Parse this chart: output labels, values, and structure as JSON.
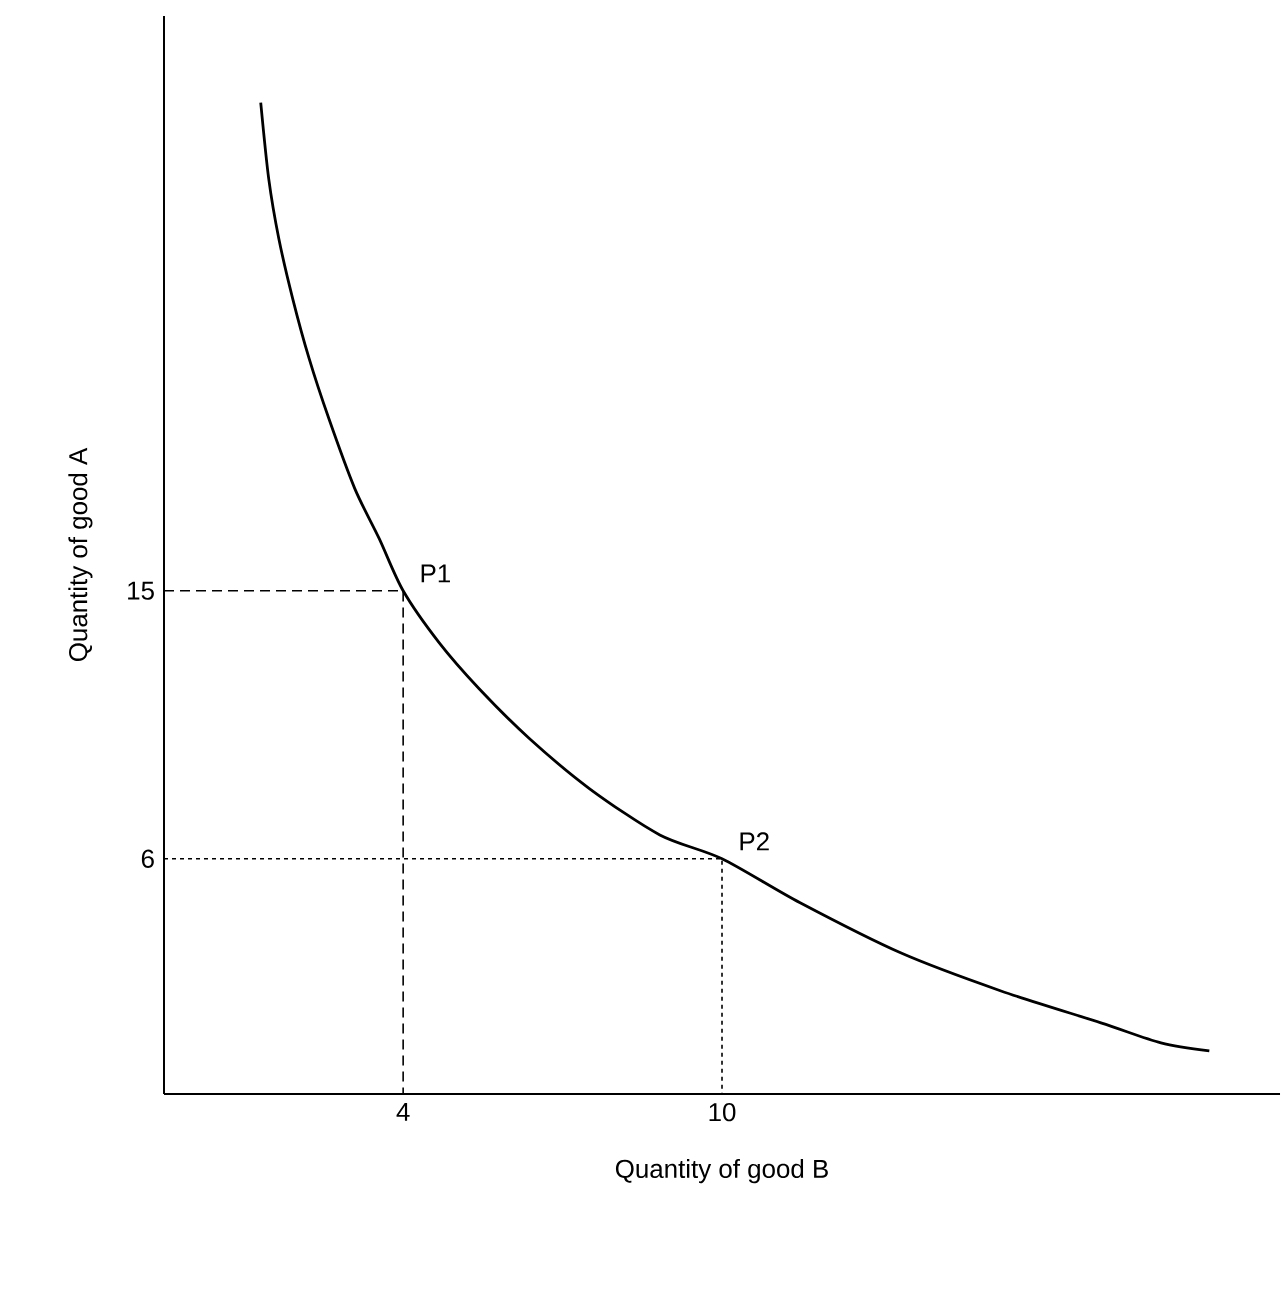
{
  "chart_data": {
    "type": "line",
    "xlabel": "Quantity of good B",
    "ylabel": "Quantity of good A",
    "xlim": [
      -0.5,
      20.5
    ],
    "ylim": [
      -1.9,
      34.3
    ],
    "xticks": [
      4,
      10
    ],
    "yticks": [
      6,
      15
    ],
    "grid": false,
    "marker": "none",
    "series": [
      {
        "color": "#000000",
        "x": [
          1.32,
          1.47,
          1.66,
          1.92,
          2.23,
          2.6,
          3.09,
          3.55,
          4,
          4.68,
          5.43,
          6.38,
          7.51,
          8.83,
          10,
          11.47,
          13.36,
          15.25,
          17.13,
          18.26,
          19.17
        ],
        "values": [
          31.39,
          28.84,
          26.83,
          24.82,
          22.8,
          20.79,
          18.43,
          16.75,
          15,
          13.25,
          11.71,
          10.03,
          8.35,
          6.8,
          6,
          4.52,
          2.84,
          1.56,
          0.49,
          -0.18,
          -0.45
        ]
      },
      {
        "color": "#000000",
        "line_style": "dashed",
        "x": [
          -0.5,
          4,
          4
        ],
        "values": [
          15,
          15,
          -1.9
        ]
      },
      {
        "color": "#000000",
        "line_style": "dotted",
        "x": [
          -0.5,
          10,
          10
        ],
        "values": [
          6,
          6,
          -1.9
        ]
      }
    ],
    "annotations": [
      {
        "text": "P1",
        "x": 4,
        "y": 15
      },
      {
        "text": "P2",
        "x": 10,
        "y": 6
      }
    ]
  }
}
